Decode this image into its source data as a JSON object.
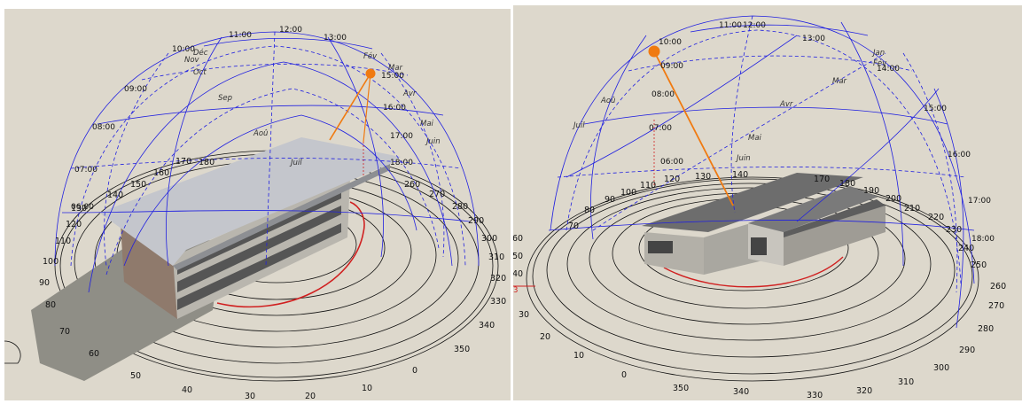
{
  "colors": {
    "background": "#ddd8cc",
    "sphere_grid": "#2020e0",
    "ground_rings": "#111111",
    "sun_marker": "#f07a10",
    "sun_ray": "#f07a10",
    "sun_path_ground": "#d02020",
    "building_roof_left": "#c4c6cc",
    "building_roof_right": "#6d6d6d",
    "shadow": "#8f8e86"
  },
  "left_view": {
    "azimuth_ticks": [
      "170",
      "180",
      "160",
      "150",
      "140",
      "130",
      "120",
      "110",
      "100",
      "90",
      "80",
      "70",
      "60",
      "50",
      "40",
      "30",
      "20",
      "10",
      "0",
      "350",
      "340",
      "330",
      "320",
      "310",
      "300",
      "290",
      "280",
      "270",
      "260"
    ],
    "hour_labels": [
      "11:00",
      "12:00",
      "13:00",
      "10:00",
      "09:00",
      "08:00",
      "07:00",
      "06:00",
      "15:00",
      "16:00",
      "17:00",
      "18:00"
    ],
    "month_labels": [
      "Déc",
      "Nov",
      "Oct",
      "Sep",
      "Aoû",
      "Juil",
      "Fév",
      "Mar",
      "Avr",
      "Mai",
      "Juin"
    ],
    "sun_icon": "sun-marker-icon"
  },
  "right_view": {
    "azimuth_ticks": [
      "70",
      "80",
      "90",
      "100",
      "110",
      "120",
      "130",
      "140",
      "170",
      "180",
      "190",
      "200",
      "210",
      "220",
      "230",
      "240",
      "250",
      "260",
      "270",
      "280",
      "290",
      "300",
      "310",
      "320",
      "330",
      "340",
      "350",
      "0",
      "10",
      "20",
      "30",
      "40",
      "50",
      "60"
    ],
    "hour_labels": [
      "11:00",
      "12:00",
      "13:00",
      "14:00",
      "15:00",
      "16:00",
      "17:00",
      "18:00",
      "10:00",
      "09:00",
      "08:00",
      "07:00",
      "06:00"
    ],
    "month_labels": [
      "Jan",
      "Fév",
      "Mar",
      "Avr",
      "Mai",
      "Juin",
      "Juil",
      "Aoû"
    ],
    "red_marker": "3",
    "sun_icon": "sun-marker-icon"
  }
}
